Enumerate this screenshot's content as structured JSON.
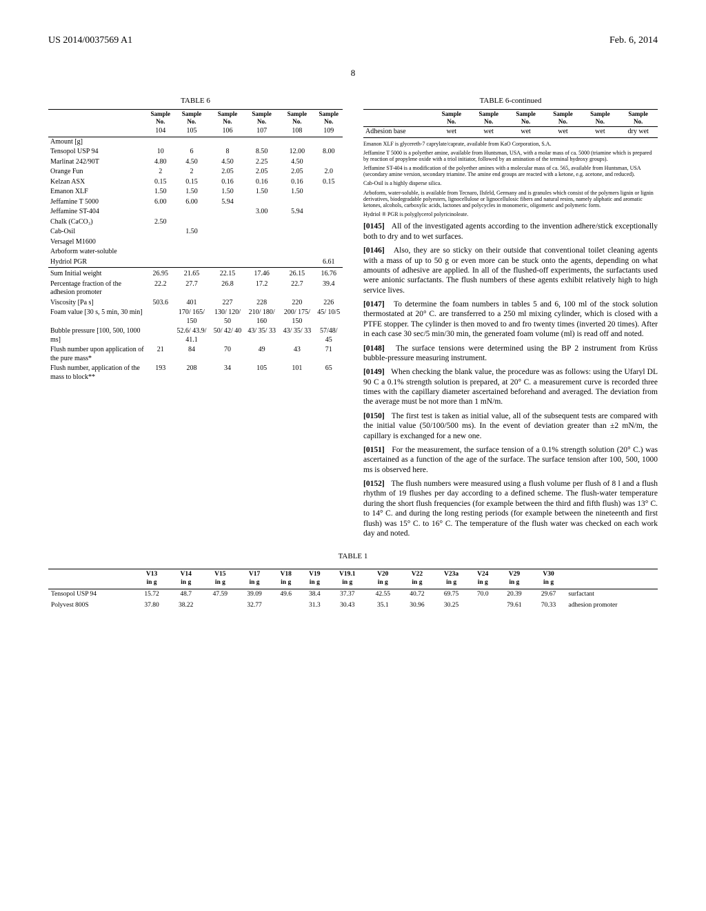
{
  "header": {
    "patent_no": "US 2014/0037569 A1",
    "date": "Feb. 6, 2014"
  },
  "page_number": "8",
  "table6": {
    "title": "TABLE 6",
    "cont_title": "TABLE 6-continued",
    "col_hdr_top": "Sample",
    "col_hdr_bot": "No.",
    "sample_ids": [
      "104",
      "105",
      "106",
      "107",
      "108",
      "109"
    ],
    "rows_main": [
      {
        "label": "Amount [g]",
        "v": [
          "",
          "",
          "",
          "",
          "",
          ""
        ]
      },
      {
        "label": "Tensopol USP 94",
        "v": [
          "10",
          "6",
          "8",
          "8.50",
          "12.00",
          "8.00"
        ]
      },
      {
        "label": "Marlinat 242/90T",
        "v": [
          "4.80",
          "4.50",
          "4.50",
          "2.25",
          "4.50",
          ""
        ]
      },
      {
        "label": "Orange Fun",
        "v": [
          "2",
          "2",
          "2.05",
          "2.05",
          "2.05",
          "2.0"
        ]
      },
      {
        "label": "Kelzan ASX",
        "v": [
          "0.15",
          "0.15",
          "0.16",
          "0.16",
          "0.16",
          "0.15"
        ]
      },
      {
        "label": "Emanon XLF",
        "v": [
          "1.50",
          "1.50",
          "1.50",
          "1.50",
          "1.50",
          ""
        ]
      },
      {
        "label": "Jeffamine T 5000",
        "v": [
          "6.00",
          "6.00",
          "5.94",
          "",
          "",
          ""
        ]
      },
      {
        "label": "Jeffamine ST-404",
        "v": [
          "",
          "",
          "",
          "3.00",
          "5.94",
          ""
        ]
      },
      {
        "label": "Chalk (CaCO₃)",
        "v": [
          "2.50",
          "",
          "",
          "",
          "",
          ""
        ]
      },
      {
        "label": "Cab-Osil",
        "v": [
          "",
          "1.50",
          "",
          "",
          "",
          ""
        ]
      },
      {
        "label": "Versagel M1600",
        "v": [
          "",
          "",
          "",
          "",
          "",
          ""
        ]
      },
      {
        "label": "Arboform water-soluble",
        "v": [
          "",
          "",
          "",
          "",
          "",
          ""
        ]
      },
      {
        "label": "Hydriol PGR",
        "v": [
          "",
          "",
          "",
          "",
          "",
          "6.61"
        ]
      }
    ],
    "rows_sum": [
      {
        "label": "Sum Initial weight",
        "v": [
          "26.95",
          "21.65",
          "22.15",
          "17.46",
          "26.15",
          "16.76"
        ]
      },
      {
        "label": "Percentage fraction of the adhesion promoter",
        "v": [
          "22.2",
          "27.7",
          "26.8",
          "17.2",
          "22.7",
          "39.4"
        ]
      },
      {
        "label": "Viscosity [Pa s]",
        "v": [
          "503.6",
          "401",
          "227",
          "228",
          "220",
          "226"
        ]
      },
      {
        "label": "Foam value [30 s, 5 min, 30 min]",
        "v": [
          "",
          "170/ 165/ 150",
          "130/ 120/ 50",
          "210/ 180/ 160",
          "200/ 175/ 150",
          "45/ 10/5"
        ]
      },
      {
        "label": "Bubble pressure [100, 500, 1000 ms]",
        "v": [
          "",
          "52.6/ 43.9/ 41.1",
          "50/ 42/ 40",
          "43/ 35/ 33",
          "43/ 35/ 33",
          "57/48/ 45"
        ]
      },
      {
        "label": "Flush number upon application of the pure mass*",
        "v": [
          "21",
          "84",
          "70",
          "49",
          "43",
          "71"
        ]
      },
      {
        "label": "Flush number, application of the mass to block**",
        "v": [
          "193",
          "208",
          "34",
          "105",
          "101",
          "65"
        ]
      }
    ],
    "cont_row": {
      "label": "Adhesion base",
      "v": [
        "wet",
        "wet",
        "wet",
        "wet",
        "wet",
        "dry wet"
      ]
    },
    "footnotes": [
      "Emanon XLF is glycereth-7 caprylate/caprate, available from KaO Corporation, S.A.",
      "Jeffamine T 5000 is a polyether amine, available from Huntsman, USA, with a molar mass of ca. 5000 (triamine which is prepared by reaction of propylene oxide with a triol initiator, followed by an amination of the terminal hydroxy groups).",
      "Jeffamine ST-404 is a modification of the polyether amines with a molecular mass of ca. 565, available from Huntsman, USA (secondary amine version, secondary triamine. The amine end groups are reacted with a ketone, e.g. acetone, and reduced).",
      "Cab-Osil is a highly disperse silica.",
      "Arboform, water-soluble, is available from Tecnaro, Ilsfeld, Germany and is granules which consist of the polymers lignin or lignin derivatives, biodegradable polyesters, lignocellulose or lignocellulosic fibers and natural resins, namely aliphatic and aromatic ketones, alcohols, carboxylic acids, lactones and polycycles in monomeric, oligomeric and polymeric form.",
      "Hydriol ® PGR is polyglycerol polyricinoleate."
    ]
  },
  "paragraphs": [
    {
      "num": "[0145]",
      "text": "All of the investigated agents according to the invention adhere/stick exceptionally both to dry and to wet surfaces."
    },
    {
      "num": "[0146]",
      "text": "Also, they are so sticky on their outside that conventional toilet cleaning agents with a mass of up to 50 g or even more can be stuck onto the agents, depending on what amounts of adhesive are applied. In all of the flushed-off experiments, the surfactants used were anionic surfactants. The flush numbers of these agents exhibit relatively high to high service lives."
    },
    {
      "num": "[0147]",
      "text": "To determine the foam numbers in tables 5 and 6, 100 ml of the stock solution thermostated at 20° C. are transferred to a 250 ml mixing cylinder, which is closed with a PTFE stopper. The cylinder is then moved to and fro twenty times (inverted 20 times). After in each case 30 sec/5 min/30 min, the generated foam volume (ml) is read off and noted."
    },
    {
      "num": "[0148]",
      "text": "The surface tensions were determined using the BP 2 instrument from Krüss bubble-pressure measuring instrument."
    },
    {
      "num": "[0149]",
      "text": "When checking the blank value, the procedure was as follows: using the Ufaryl DL 90 C a 0.1% strength solution is prepared, at 20° C. a measurement curve is recorded three times with the capillary diameter ascertained beforehand and averaged. The deviation from the average must be not more than 1 mN/m."
    },
    {
      "num": "[0150]",
      "text": "The first test is taken as initial value, all of the subsequent tests are compared with the initial value (50/100/500 ms). In the event of deviation greater than ±2 mN/m, the capillary is exchanged for a new one."
    },
    {
      "num": "[0151]",
      "text": "For the measurement, the surface tension of a 0.1% strength solution (20° C.) was ascertained as a function of the age of the surface. The surface tension after 100, 500, 1000 ms is observed here."
    },
    {
      "num": "[0152]",
      "text": "The flush numbers were measured using a flush volume per flush of 8 l and a flush rhythm of 19 flushes per day according to a defined scheme. The flush-water temperature during the short flush frequencies (for example between the third and fifth flush) was 13° C. to 14° C. and during the long resting periods (for example between the nineteenth and first flush) was 15° C. to 16° C. The temperature of the flush water was checked on each work day and noted."
    }
  ],
  "table1": {
    "title": "TABLE 1",
    "cols": [
      "V13",
      "V14",
      "V15",
      "V17",
      "V18",
      "V19",
      "V19.1",
      "V20",
      "V22",
      "V23a",
      "V24",
      "V29",
      "V30"
    ],
    "unit": "in g",
    "rows": [
      {
        "label": "Tensopol USP 94",
        "v": [
          "15.72",
          "48.7",
          "47.59",
          "39.09",
          "49.6",
          "38.4",
          "37.37",
          "42.55",
          "40.72",
          "69.75",
          "70.0",
          "20.39",
          "29.67"
        ],
        "note": "surfactant"
      },
      {
        "label": "Polyvest 800S",
        "v": [
          "37.80",
          "38.22",
          "",
          "32.77",
          "",
          "31.3",
          "30.43",
          "35.1",
          "30.96",
          "30.25",
          "",
          "79.61",
          "70.33"
        ],
        "note": "adhesion promoter"
      }
    ]
  }
}
